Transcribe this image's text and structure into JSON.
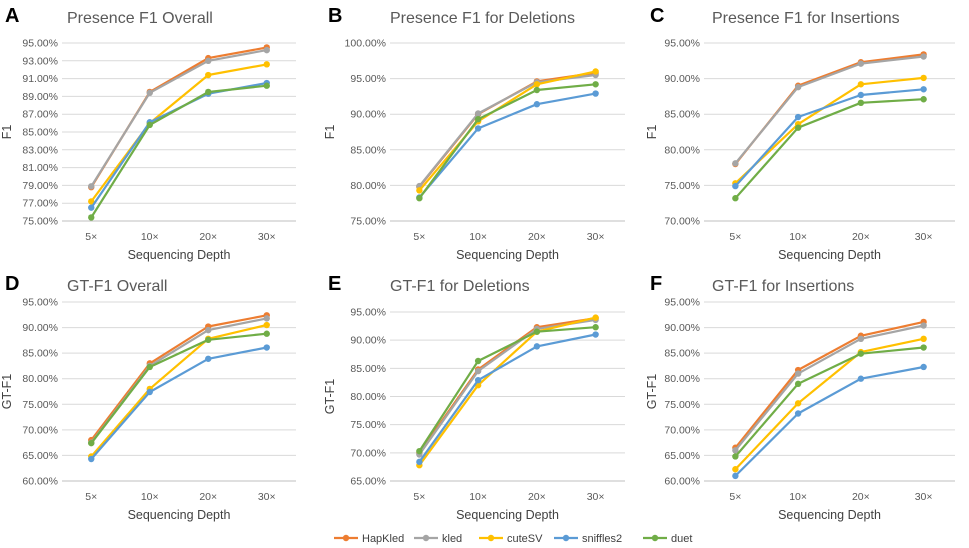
{
  "series_styles": [
    {
      "name": "HapKled",
      "color": "#ED7D31"
    },
    {
      "name": "kled",
      "color": "#A5A5A5"
    },
    {
      "name": "cuteSV",
      "color": "#FFC000"
    },
    {
      "name": "sniffles2",
      "color": "#5B9BD5"
    },
    {
      "name": "duet",
      "color": "#70AD47"
    }
  ],
  "chart_data": [
    {
      "panel": "A",
      "type": "line",
      "title": "Presence F1 Overall",
      "xlabel": "Sequencing Depth",
      "ylabel": "F1",
      "categories": [
        "5×",
        "10×",
        "20×",
        "30×"
      ],
      "ylim": [
        75,
        95
      ],
      "ystep": 2,
      "yticks": [
        "75.00%",
        "77.00%",
        "79.00%",
        "81.00%",
        "83.00%",
        "85.00%",
        "87.00%",
        "89.00%",
        "91.00%",
        "93.00%",
        "95.00%"
      ],
      "series": [
        {
          "name": "HapKled",
          "values": [
            78.8,
            89.5,
            93.3,
            94.5
          ]
        },
        {
          "name": "kled",
          "values": [
            78.9,
            89.4,
            93.0,
            94.2
          ]
        },
        {
          "name": "cuteSV",
          "values": [
            77.2,
            86.0,
            91.4,
            92.6
          ]
        },
        {
          "name": "sniffles2",
          "values": [
            76.5,
            86.1,
            89.3,
            90.5
          ]
        },
        {
          "name": "duet",
          "values": [
            75.4,
            85.8,
            89.5,
            90.2
          ]
        }
      ]
    },
    {
      "panel": "B",
      "type": "line",
      "title": "Presence F1 for Deletions",
      "xlabel": "Sequencing Depth",
      "ylabel": "F1",
      "categories": [
        "5×",
        "10×",
        "20×",
        "30×"
      ],
      "ylim": [
        75,
        100
      ],
      "ystep": 5,
      "yticks": [
        "75.00%",
        "80.00%",
        "85.00%",
        "90.00%",
        "95.00%",
        "100.00%"
      ],
      "series": [
        {
          "name": "HapKled",
          "values": [
            79.8,
            90.0,
            94.6,
            95.8
          ]
        },
        {
          "name": "kled",
          "values": [
            79.9,
            90.1,
            94.5,
            95.5
          ]
        },
        {
          "name": "cuteSV",
          "values": [
            79.3,
            89.0,
            94.2,
            96.0
          ]
        },
        {
          "name": "sniffles2",
          "values": [
            78.3,
            88.0,
            91.4,
            92.9
          ]
        },
        {
          "name": "duet",
          "values": [
            78.2,
            89.3,
            93.4,
            94.2
          ]
        }
      ]
    },
    {
      "panel": "C",
      "type": "line",
      "title": "Presence F1 for Insertions",
      "xlabel": "Sequencing Depth",
      "ylabel": "F1",
      "categories": [
        "5×",
        "10×",
        "20×",
        "30×"
      ],
      "ylim": [
        70,
        95
      ],
      "ystep": 5,
      "yticks": [
        "70.00%",
        "75.00%",
        "80.00%",
        "85.00%",
        "90.00%",
        "95.00%"
      ],
      "series": [
        {
          "name": "HapKled",
          "values": [
            78.0,
            89.0,
            92.3,
            93.4
          ]
        },
        {
          "name": "kled",
          "values": [
            78.1,
            88.8,
            92.1,
            93.1
          ]
        },
        {
          "name": "cuteSV",
          "values": [
            75.3,
            83.6,
            89.2,
            90.1
          ]
        },
        {
          "name": "sniffles2",
          "values": [
            74.9,
            84.6,
            87.7,
            88.5
          ]
        },
        {
          "name": "duet",
          "values": [
            73.2,
            83.1,
            86.6,
            87.1
          ]
        }
      ]
    },
    {
      "panel": "D",
      "type": "line",
      "title": "GT-F1 Overall",
      "xlabel": "Sequencing Depth",
      "ylabel": "GT-F1",
      "categories": [
        "5×",
        "10×",
        "20×",
        "30×"
      ],
      "ylim": [
        60,
        95
      ],
      "ystep": 5,
      "yticks": [
        "60.00%",
        "65.00%",
        "70.00%",
        "75.00%",
        "80.00%",
        "85.00%",
        "90.00%",
        "95.00%"
      ],
      "series": [
        {
          "name": "HapKled",
          "values": [
            68.0,
            83.0,
            90.2,
            92.4
          ]
        },
        {
          "name": "kled",
          "values": [
            67.5,
            82.5,
            89.5,
            91.8
          ]
        },
        {
          "name": "cuteSV",
          "values": [
            64.8,
            78.0,
            87.8,
            90.5
          ]
        },
        {
          "name": "sniffles2",
          "values": [
            64.3,
            77.4,
            83.9,
            86.1
          ]
        },
        {
          "name": "duet",
          "values": [
            67.4,
            82.3,
            87.6,
            88.8
          ]
        }
      ]
    },
    {
      "panel": "E",
      "type": "line",
      "title": "GT-F1 for Deletions",
      "xlabel": "Sequencing Depth",
      "ylabel": "GT-F1",
      "categories": [
        "5×",
        "10×",
        "20×",
        "30×"
      ],
      "ylim": [
        65,
        95
      ],
      "ystep": 5,
      "yticks": [
        "65.00%",
        "70.00%",
        "75.00%",
        "80.00%",
        "85.00%",
        "90.00%",
        "95.00%"
      ],
      "series": [
        {
          "name": "HapKled",
          "values": [
            70.0,
            84.8,
            92.3,
            93.9
          ]
        },
        {
          "name": "kled",
          "values": [
            69.7,
            84.5,
            92.0,
            93.6
          ]
        },
        {
          "name": "cuteSV",
          "values": [
            67.8,
            82.0,
            91.5,
            94.0
          ]
        },
        {
          "name": "sniffles2",
          "values": [
            68.4,
            82.9,
            88.9,
            91.0
          ]
        },
        {
          "name": "duet",
          "values": [
            70.3,
            86.3,
            91.5,
            92.3
          ]
        }
      ]
    },
    {
      "panel": "F",
      "type": "line",
      "title": "GT-F1 for Insertions",
      "xlabel": "Sequencing Depth",
      "ylabel": "GT-F1",
      "categories": [
        "5×",
        "10×",
        "20×",
        "30×"
      ],
      "ylim": [
        60,
        95
      ],
      "ystep": 5,
      "yticks": [
        "60.00%",
        "65.00%",
        "70.00%",
        "75.00%",
        "80.00%",
        "85.00%",
        "90.00%",
        "95.00%"
      ],
      "series": [
        {
          "name": "HapKled",
          "values": [
            66.5,
            81.7,
            88.4,
            91.1
          ]
        },
        {
          "name": "kled",
          "values": [
            66.0,
            81.0,
            87.8,
            90.4
          ]
        },
        {
          "name": "cuteSV",
          "values": [
            62.3,
            75.2,
            85.2,
            87.8
          ]
        },
        {
          "name": "sniffles2",
          "values": [
            61.0,
            73.2,
            80.0,
            82.3
          ]
        },
        {
          "name": "duet",
          "values": [
            64.8,
            79.0,
            84.9,
            86.1
          ]
        }
      ]
    }
  ]
}
